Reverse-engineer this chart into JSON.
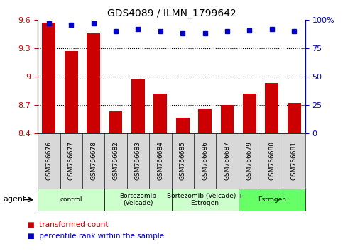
{
  "title": "GDS4089 / ILMN_1799642",
  "samples": [
    "GSM766676",
    "GSM766677",
    "GSM766678",
    "GSM766682",
    "GSM766683",
    "GSM766684",
    "GSM766685",
    "GSM766686",
    "GSM766687",
    "GSM766679",
    "GSM766680",
    "GSM766681"
  ],
  "bar_values": [
    9.57,
    9.27,
    9.46,
    8.63,
    8.97,
    8.82,
    8.56,
    8.65,
    8.7,
    8.82,
    8.93,
    8.72
  ],
  "percentile_values": [
    97,
    96,
    97,
    90,
    92,
    90,
    88,
    88,
    90,
    91,
    92,
    90
  ],
  "bar_color": "#cc0000",
  "percentile_color": "#0000cc",
  "ylim_left": [
    8.4,
    9.6
  ],
  "ylim_right": [
    0,
    100
  ],
  "yticks_left": [
    8.4,
    8.7,
    9.0,
    9.3,
    9.6
  ],
  "ytick_labels_left": [
    "8.4",
    "8.7",
    "9",
    "9.3",
    "9.6"
  ],
  "yticks_right": [
    0,
    25,
    50,
    75,
    100
  ],
  "ytick_labels_right": [
    "0",
    "25",
    "50",
    "75",
    "100%"
  ],
  "hlines": [
    8.7,
    9.0,
    9.3
  ],
  "groups": [
    {
      "label": "control",
      "start": 0,
      "end": 3,
      "color": "#ccffcc"
    },
    {
      "label": "Bortezomib\n(Velcade)",
      "start": 3,
      "end": 6,
      "color": "#ccffcc"
    },
    {
      "label": "Bortezomib (Velcade) +\nEstrogen",
      "start": 6,
      "end": 9,
      "color": "#ccffcc"
    },
    {
      "label": "Estrogen",
      "start": 9,
      "end": 12,
      "color": "#66ff66"
    }
  ],
  "agent_label": "agent",
  "legend_items": [
    {
      "label": "transformed count",
      "color": "#cc0000"
    },
    {
      "label": "percentile rank within the sample",
      "color": "#0000cc"
    }
  ],
  "background_color": "#ffffff",
  "bar_width": 0.6,
  "figsize": [
    4.83,
    3.54
  ],
  "dpi": 100
}
